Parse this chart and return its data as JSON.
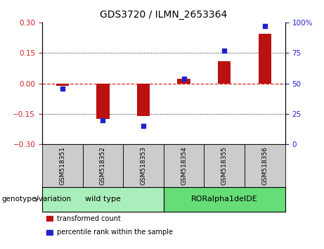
{
  "title": "GDS3720 / ILMN_2653364",
  "samples": [
    "GSM518351",
    "GSM518352",
    "GSM518353",
    "GSM518354",
    "GSM518355",
    "GSM518356"
  ],
  "bar_values": [
    -0.012,
    -0.175,
    -0.16,
    0.022,
    0.108,
    0.245
  ],
  "dot_values_pct": [
    46,
    20,
    15,
    54,
    77,
    97
  ],
  "ylim_left": [
    -0.3,
    0.3
  ],
  "ylim_right": [
    0,
    100
  ],
  "yticks_left": [
    -0.3,
    -0.15,
    0,
    0.15,
    0.3
  ],
  "yticks_right": [
    0,
    25,
    50,
    75,
    100
  ],
  "bar_color": "#BB1111",
  "dot_color": "#2222CC",
  "zero_line_color": "#DD2222",
  "grid_color": "#111111",
  "groups": [
    {
      "label": "wild type",
      "indices": [
        0,
        1,
        2
      ],
      "color": "#AAEEBB"
    },
    {
      "label": "RORalpha1delDE",
      "indices": [
        3,
        4,
        5
      ],
      "color": "#66DD77"
    }
  ],
  "genotype_label": "genotype/variation",
  "legend_items": [
    {
      "label": "transformed count",
      "color": "#BB1111"
    },
    {
      "label": "percentile rank within the sample",
      "color": "#2222CC"
    }
  ],
  "tick_label_color_left": "#CC2222",
  "tick_label_color_right": "#2222CC",
  "background_plot": "#FFFFFF",
  "sample_box_color": "#CCCCCC",
  "title_fontsize": 10,
  "tick_fontsize": 7.5,
  "sample_fontsize": 6.5,
  "group_fontsize": 8,
  "legend_fontsize": 7,
  "genotype_fontsize": 7.5
}
